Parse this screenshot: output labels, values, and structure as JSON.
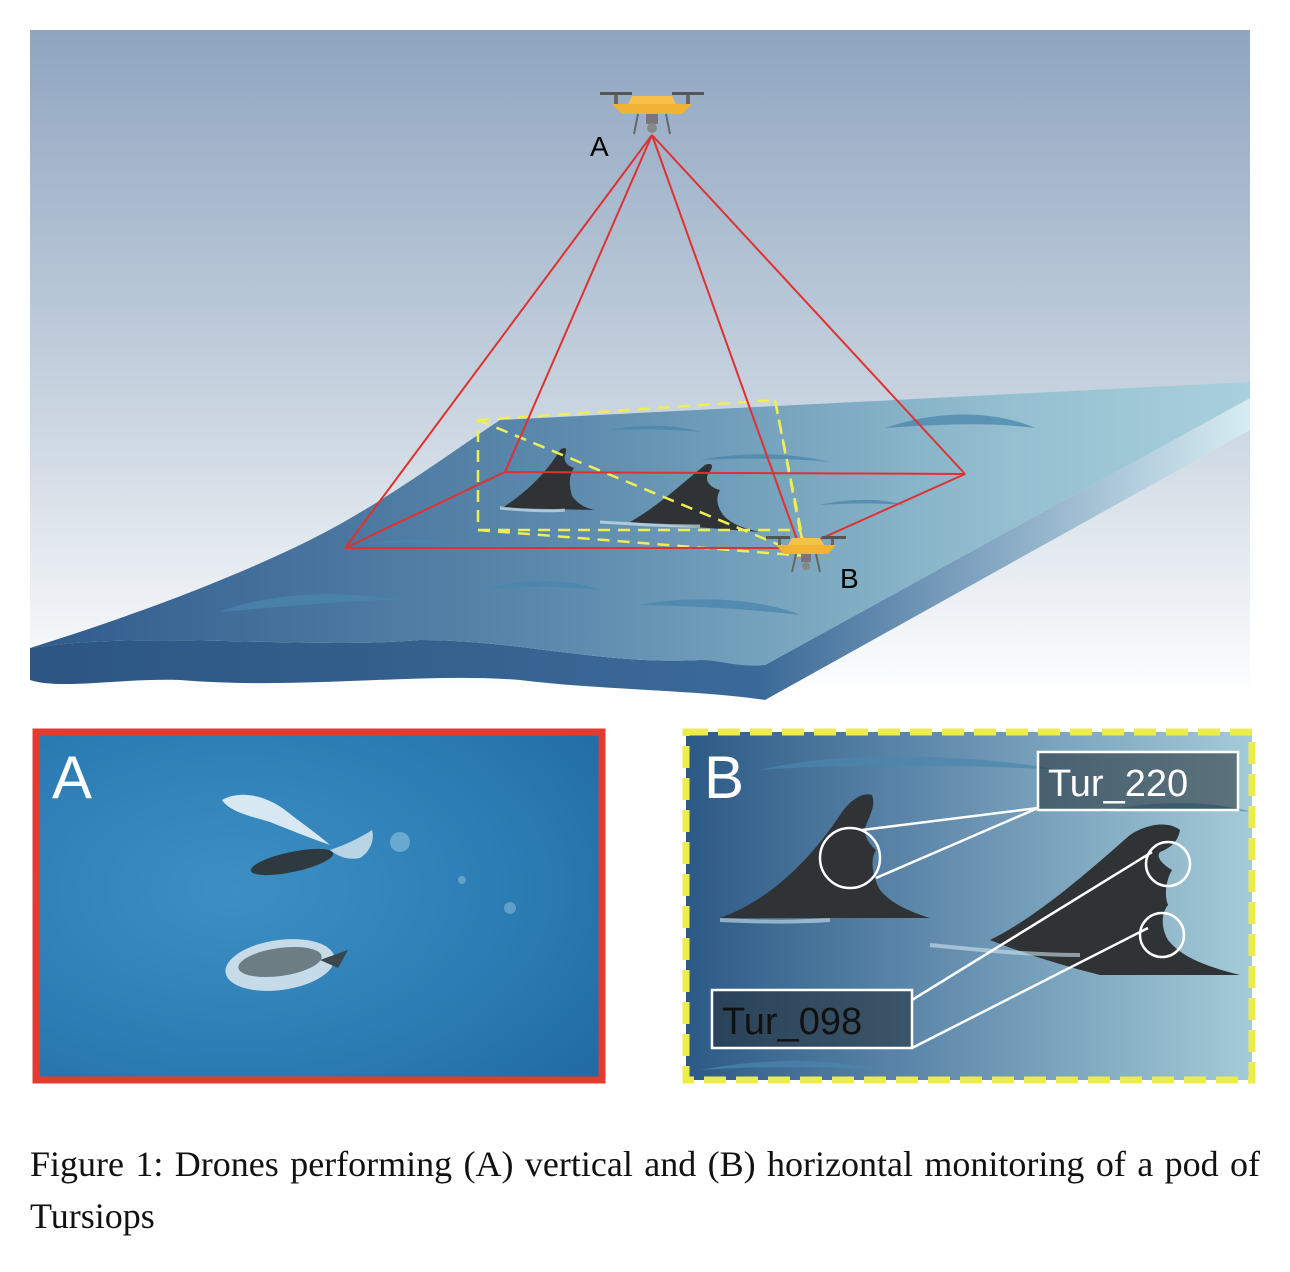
{
  "scene": {
    "drone_a_label": "A",
    "drone_b_label": "B",
    "colors": {
      "sky_top": "#8fa5c0",
      "sky_bottom": "#ffffff",
      "sea_dark": "#35608f",
      "sea_light": "#9cc5d3",
      "vertical_view": "#e03131",
      "horizontal_view": "#f0ee55",
      "drone_body": "#f2b233",
      "fin": "#2f3336"
    }
  },
  "panel_a": {
    "label": "A",
    "border_color": "#e53b2f"
  },
  "panel_b": {
    "label": "B",
    "border_color": "#ecec4a",
    "tags": [
      "Tur_220",
      "Tur_098"
    ]
  },
  "caption": "Figure 1: Drones performing (A) vertical and (B) horizontal monitoring of a pod of Tursiops"
}
